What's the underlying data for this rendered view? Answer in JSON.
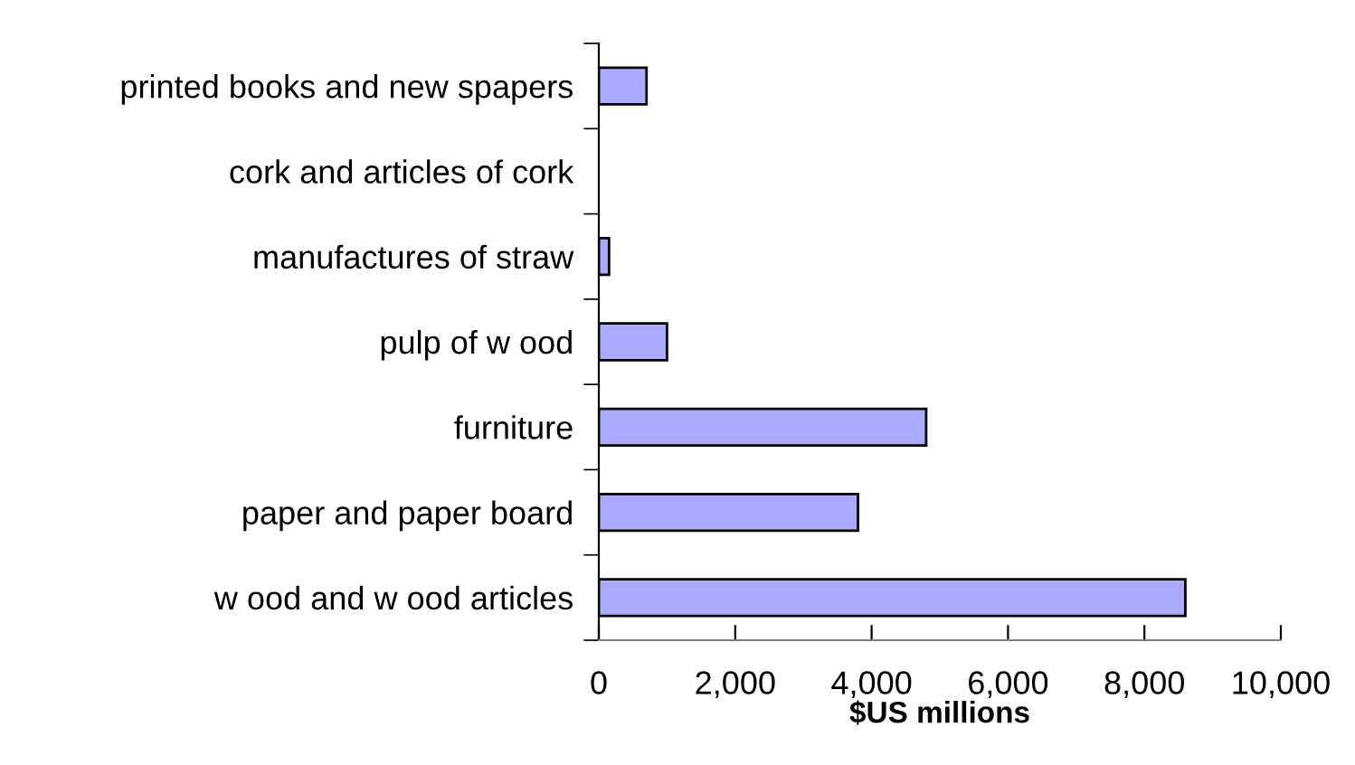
{
  "chart_data": {
    "type": "bar",
    "orientation": "horizontal",
    "xlabel": "$US millions",
    "categories": [
      "printed books and new spapers",
      "cork and articles of cork",
      "manufactures of straw",
      "pulp of w ood",
      "furniture",
      "paper and paper board",
      "w ood and w ood articles"
    ],
    "values": [
      700,
      0,
      150,
      1000,
      4800,
      3800,
      8600
    ],
    "color": "#aaaaff",
    "xlim": [
      0,
      10000
    ],
    "xticks": [
      {
        "value": 0,
        "label": "0"
      },
      {
        "value": 2000,
        "label": "2,000"
      },
      {
        "value": 4000,
        "label": "4,000"
      },
      {
        "value": 6000,
        "label": "6,000"
      },
      {
        "value": 8000,
        "label": "8,000"
      },
      {
        "value": 10000,
        "label": "10,000"
      }
    ],
    "grid": false,
    "legend": false
  }
}
